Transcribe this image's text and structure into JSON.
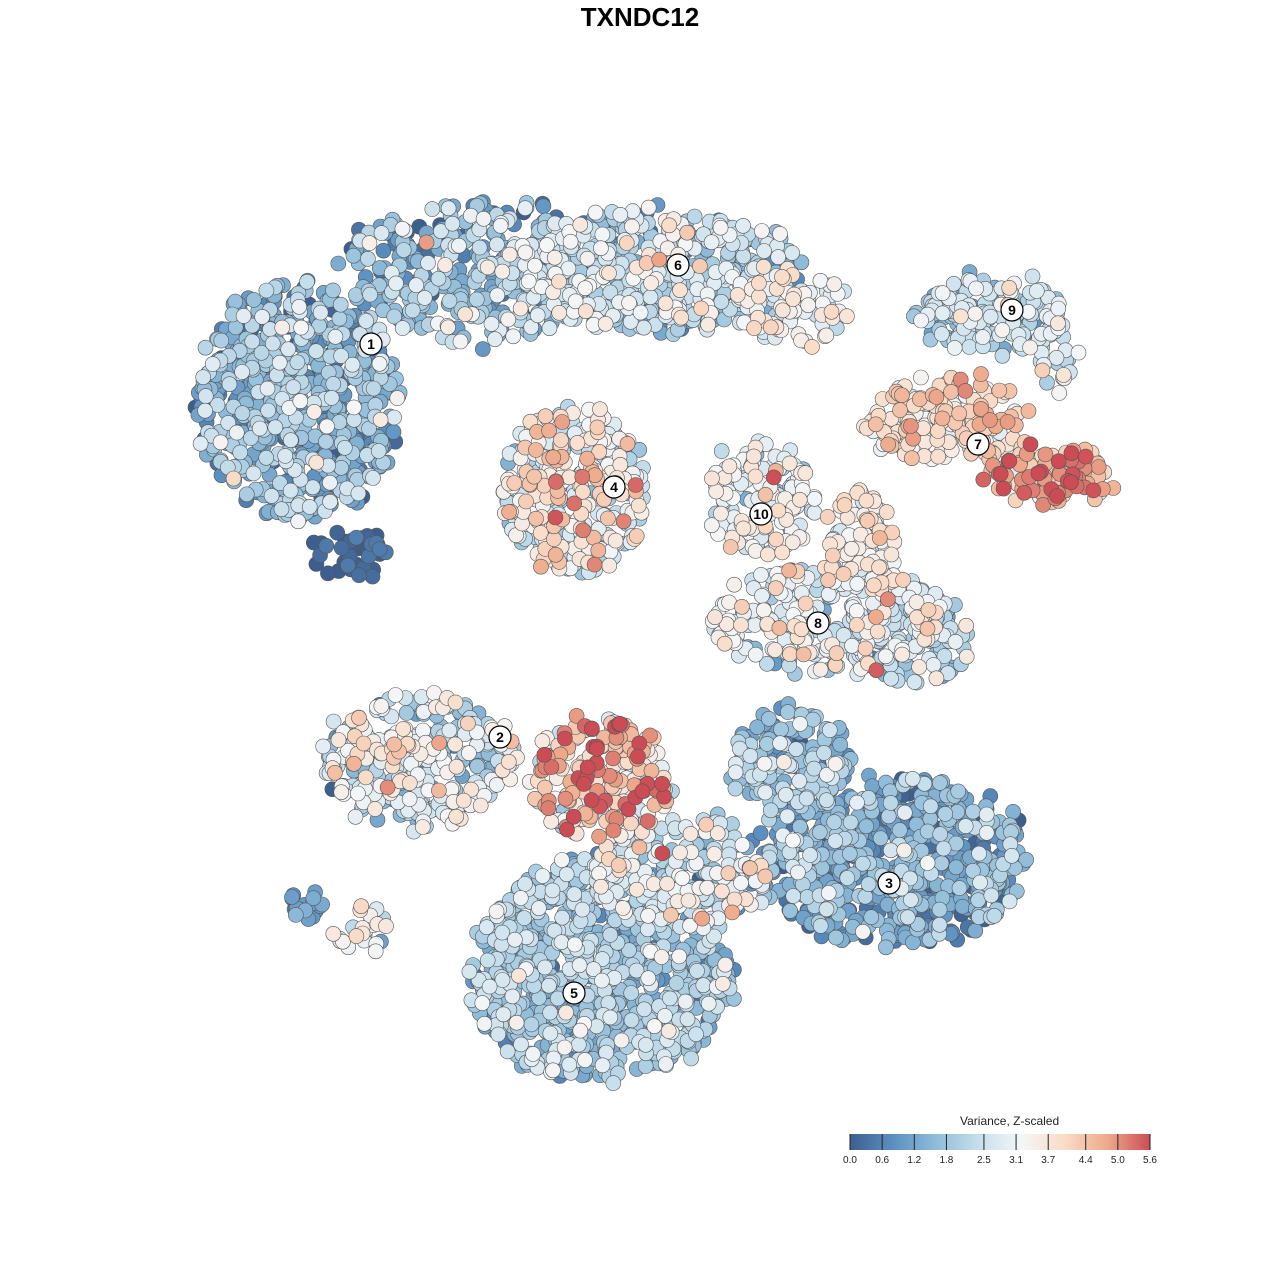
{
  "title": "TXNDC12",
  "chart_data": {
    "type": "scatter",
    "title": "TXNDC12",
    "xlabel": "",
    "ylabel": "",
    "grid": false,
    "color_scale": {
      "label": "Variance, Z-scaled",
      "min": 0.0,
      "max": 5.6,
      "ticks": [
        "0.0",
        "0.6",
        "1.2",
        "1.8",
        "2.5",
        "3.1",
        "3.7",
        "4.4",
        "5.0",
        "5.6"
      ],
      "colors": [
        "#3d5f8f",
        "#5a8fc0",
        "#8fbcd9",
        "#c7dfec",
        "#f4f6f8",
        "#f9dcc8",
        "#eeaa8c",
        "#cc4c55"
      ]
    },
    "legend_position": "bottom-right",
    "clusters": [
      {
        "label": "1",
        "typical_value": 1.4
      },
      {
        "label": "2",
        "typical_value": 2.6
      },
      {
        "label": "3",
        "typical_value": 1.3
      },
      {
        "label": "4",
        "typical_value": 3.2
      },
      {
        "label": "5",
        "typical_value": 1.8
      },
      {
        "label": "6",
        "typical_value": 2.2
      },
      {
        "label": "7",
        "typical_value": 3.8
      },
      {
        "label": "8",
        "typical_value": 2.8
      },
      {
        "label": "9",
        "typical_value": 2.2
      },
      {
        "label": "10",
        "typical_value": 3.0
      }
    ]
  }
}
